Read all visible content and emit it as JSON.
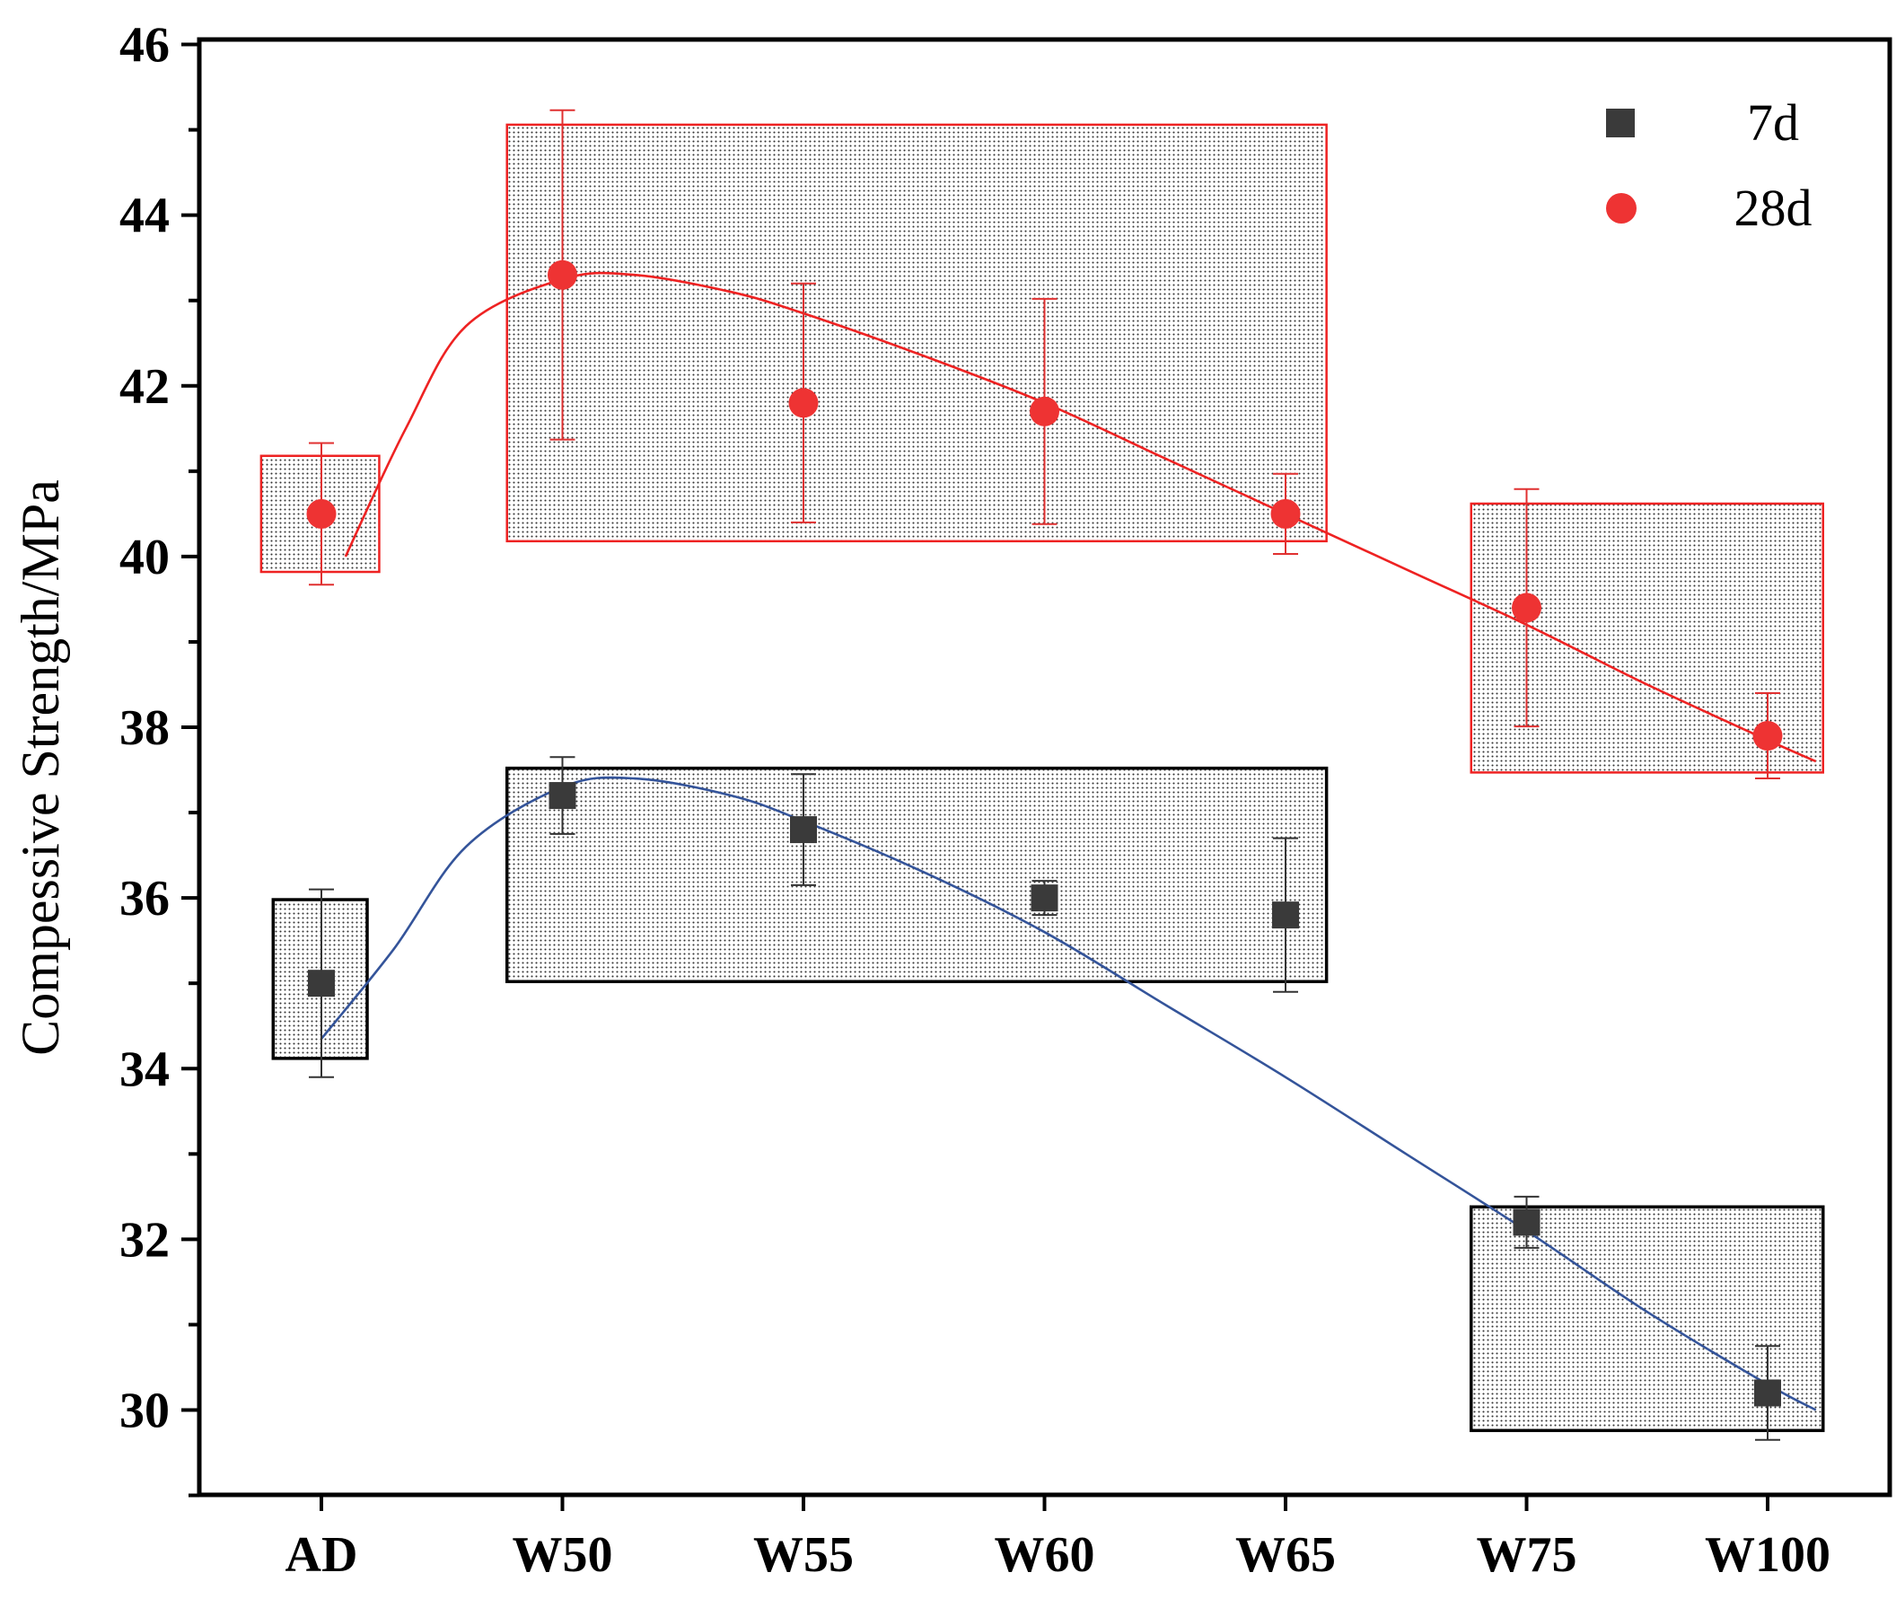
{
  "chart_data": {
    "type": "scatter",
    "categories": [
      "AD",
      "W50",
      "W55",
      "W60",
      "W65",
      "W75",
      "W100"
    ],
    "ylabel": "Compessive Strength/MPa",
    "xlabel": "",
    "ylim": [
      29,
      46
    ],
    "yticks": [
      30,
      32,
      34,
      36,
      38,
      40,
      42,
      44,
      46
    ],
    "legend_position": "top-right",
    "series": [
      {
        "name": "7d",
        "color": "#3a3a3a",
        "fit_color": "#34549a",
        "marker": "square",
        "values": [
          35.0,
          37.2,
          36.8,
          36.0,
          35.8,
          32.2,
          30.2
        ],
        "errors": [
          1.1,
          0.45,
          0.65,
          0.2,
          0.9,
          0.3,
          0.55
        ],
        "fit_curve": [
          [
            0.0,
            34.35
          ],
          [
            0.3,
            35.4
          ],
          [
            0.6,
            36.6
          ],
          [
            1.0,
            37.3
          ],
          [
            1.3,
            37.4
          ],
          [
            1.7,
            37.2
          ],
          [
            2.0,
            36.9
          ],
          [
            2.5,
            36.3
          ],
          [
            3.0,
            35.6
          ],
          [
            3.5,
            34.75
          ],
          [
            4.0,
            33.9
          ],
          [
            4.5,
            33.0
          ],
          [
            5.0,
            32.1
          ],
          [
            5.5,
            31.15
          ],
          [
            6.0,
            30.3
          ],
          [
            6.2,
            30.0
          ]
        ]
      },
      {
        "name": "28d",
        "color": "#ee3333",
        "fit_color": "#ee2222",
        "marker": "circle",
        "values": [
          40.5,
          43.3,
          41.8,
          41.7,
          40.5,
          39.4,
          37.9
        ],
        "errors": [
          0.83,
          1.93,
          1.4,
          1.32,
          0.47,
          1.39,
          0.5
        ],
        "fit_curve": [
          [
            0.1,
            40.0
          ],
          [
            0.35,
            41.5
          ],
          [
            0.6,
            42.7
          ],
          [
            1.0,
            43.25
          ],
          [
            1.3,
            43.3
          ],
          [
            1.7,
            43.1
          ],
          [
            2.0,
            42.85
          ],
          [
            2.5,
            42.35
          ],
          [
            3.0,
            41.8
          ],
          [
            3.5,
            41.15
          ],
          [
            4.0,
            40.5
          ],
          [
            4.5,
            39.85
          ],
          [
            5.0,
            39.2
          ],
          [
            5.5,
            38.5
          ],
          [
            6.0,
            37.85
          ],
          [
            6.2,
            37.6
          ]
        ]
      }
    ],
    "group_boxes": [
      {
        "series": "28d",
        "x0": -0.25,
        "x1": 0.24,
        "y0": 39.82,
        "y1": 41.18,
        "color": "#ee2222"
      },
      {
        "series": "28d",
        "x0": 0.77,
        "x1": 4.17,
        "y0": 40.18,
        "y1": 45.06,
        "color": "#ee2222"
      },
      {
        "series": "28d",
        "x0": 4.77,
        "x1": 6.23,
        "y0": 37.47,
        "y1": 40.62,
        "color": "#ee2222"
      },
      {
        "series": "7d",
        "x0": -0.2,
        "x1": 0.19,
        "y0": 34.12,
        "y1": 35.98,
        "color": "#000000"
      },
      {
        "series": "7d",
        "x0": 0.77,
        "x1": 4.17,
        "y0": 35.02,
        "y1": 37.52,
        "color": "#000000"
      },
      {
        "series": "7d",
        "x0": 4.77,
        "x1": 6.23,
        "y0": 29.76,
        "y1": 32.38,
        "color": "#000000"
      }
    ]
  }
}
